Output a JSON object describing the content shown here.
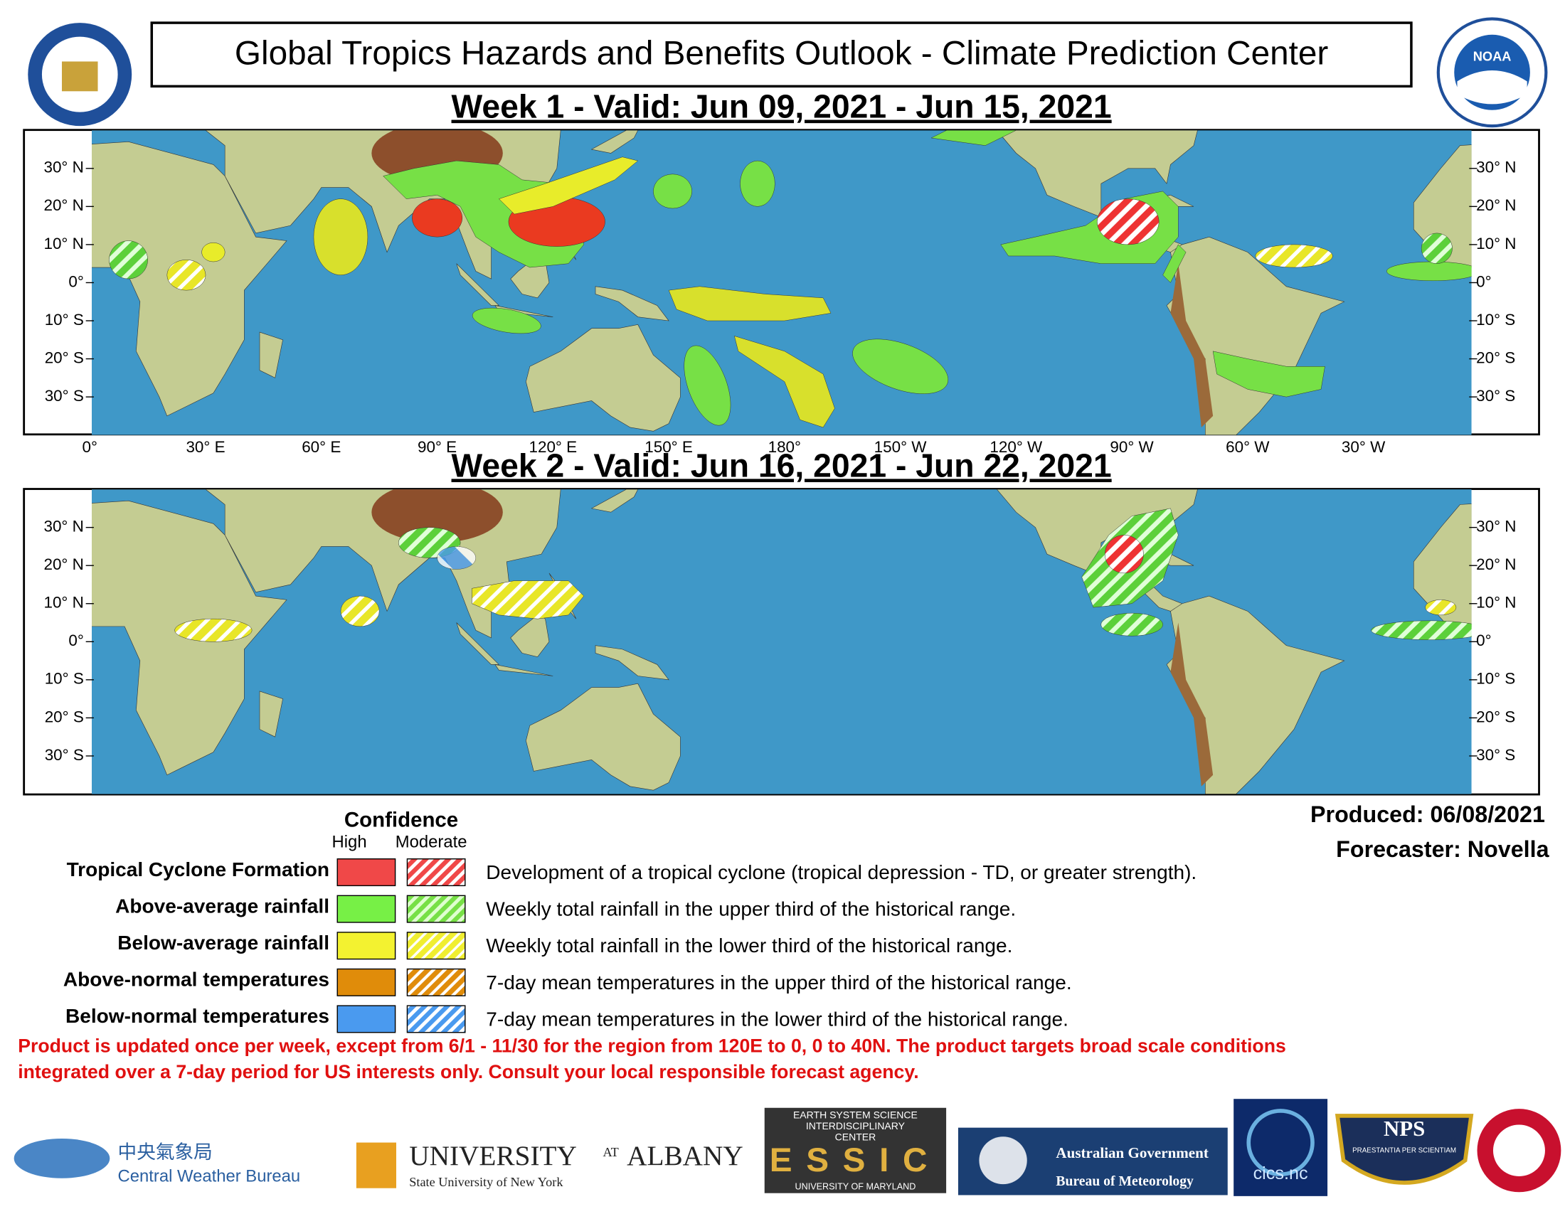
{
  "header": {
    "title": "Global Tropics Hazards and Benefits Outlook - Climate Prediction Center",
    "week1_title": "Week 1 - Valid: Jun 09, 2021 - Jun 15, 2021",
    "week2_title": "Week 2 - Valid: Jun 16, 2021 - Jun 22, 2021"
  },
  "map": {
    "lat_labels": [
      "30° N",
      "20° N",
      "10° N",
      "0°",
      "10° S",
      "20° S",
      "30° S"
    ],
    "lon_labels": [
      "0°",
      "30° E",
      "60° E",
      "90° E",
      "120° E",
      "150° E",
      "180°",
      "150° W",
      "120° W",
      "90° W",
      "60° W",
      "30° W"
    ]
  },
  "legend": {
    "confidence": "Confidence",
    "high": "High",
    "moderate": "Moderate",
    "rows": [
      {
        "label": "Tropical Cyclone Formation",
        "description": "Development of a tropical cyclone (tropical depression - TD, or greater strength)."
      },
      {
        "label": "Above-average rainfall",
        "description": "Weekly total rainfall in the upper third of the historical range."
      },
      {
        "label": "Below-average rainfall",
        "description": "Weekly total rainfall in the lower third of the historical range."
      },
      {
        "label": "Above-normal temperatures",
        "description": "7-day mean temperatures in the upper third of the historical range."
      },
      {
        "label": "Below-normal temperatures",
        "description": "7-day mean temperatures in the lower third of the historical range."
      }
    ]
  },
  "produced": "Produced: 06/08/2021",
  "forecaster": "Forecaster: Novella",
  "disclaimer": [
    "Product is updated once per week, except from 6/1 - 11/30 for the region from 120E to 0, 0 to 40N. The product targets broad scale conditions",
    "integrated over a 7-day period for US interests only.  Consult your local responsible forecast agency."
  ],
  "logos": {
    "cwb_chinese": "中央氣象局",
    "cwb": "Central Weather Bureau",
    "albany": "UNIVERSITY",
    "albany_at": "AT",
    "albany_name": "ALBANY",
    "albany_sub": "State University of New York",
    "essic_top": "EARTH SYSTEM SCIENCE",
    "essic_mid": "INTERDISCIPLINARY",
    "essic_center": "CENTER",
    "essic": "ESSIC",
    "essic_bottom": "UNIVERSITY OF MARYLAND",
    "bom_gov": "Australian Government",
    "bom": "Bureau of Meteorology",
    "cics": "cics.nc",
    "nps": "NPS",
    "nps_motto": "PRAESTANTIA PER SCIENTIAM",
    "noaa": "NOAA"
  }
}
